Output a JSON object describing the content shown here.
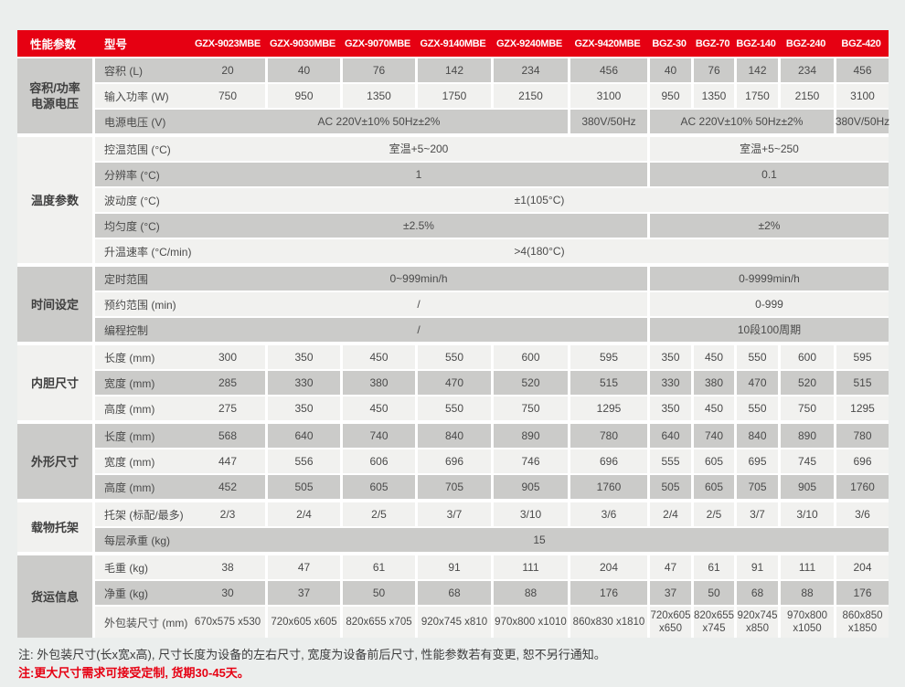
{
  "colors": {
    "accent": "#e60012",
    "row_gray": "#cbcbc9",
    "row_light": "#f1f1ef",
    "header_text": "#ffffff",
    "page_bg": "#ebeeed"
  },
  "header": {
    "param_label": "性能参数",
    "model_label": "型号",
    "models": [
      "GZX-9023MBE",
      "GZX-9030MBE",
      "GZX-9070MBE",
      "GZX-9140MBE",
      "GZX-9240MBE",
      "GZX-9420MBE",
      "BGZ-30",
      "BGZ-70",
      "BGZ-140",
      "BGZ-240",
      "BGZ-420"
    ]
  },
  "sections": [
    {
      "category": "容积/功率\n电源电压",
      "rows": [
        {
          "label": "容积 (L)",
          "cells": [
            [
              "20",
              1
            ],
            [
              "40",
              1
            ],
            [
              "76",
              1
            ],
            [
              "142",
              1
            ],
            [
              "234",
              1
            ],
            [
              "456",
              1
            ],
            [
              "40",
              1
            ],
            [
              "76",
              1
            ],
            [
              "142",
              1
            ],
            [
              "234",
              1
            ],
            [
              "456",
              1
            ]
          ]
        },
        {
          "label": "输入功率 (W)",
          "cells": [
            [
              "750",
              1
            ],
            [
              "950",
              1
            ],
            [
              "1350",
              1
            ],
            [
              "1750",
              1
            ],
            [
              "2150",
              1
            ],
            [
              "3100",
              1
            ],
            [
              "950",
              1
            ],
            [
              "1350",
              1
            ],
            [
              "1750",
              1
            ],
            [
              "2150",
              1
            ],
            [
              "3100",
              1
            ]
          ]
        },
        {
          "label": "电源电压 (V)",
          "cells": [
            [
              "AC 220V±10% 50Hz±2%",
              5
            ],
            [
              "380V/50Hz",
              1
            ],
            [
              "AC 220V±10% 50Hz±2%",
              4
            ],
            [
              "380V/50Hz",
              1
            ]
          ]
        }
      ]
    },
    {
      "category": "温度参数",
      "rows": [
        {
          "label": "控温范围 (°C)",
          "cells": [
            [
              "室温+5~200",
              6
            ],
            [
              "室温+5~250",
              5
            ]
          ]
        },
        {
          "label": "分辨率 (°C)",
          "cells": [
            [
              "1",
              6
            ],
            [
              "0.1",
              5
            ]
          ]
        },
        {
          "label": "波动度 (°C)",
          "cells": [
            [
              "±1(105°C)",
              11
            ]
          ]
        },
        {
          "label": "均匀度 (°C)",
          "cells": [
            [
              "±2.5%",
              6
            ],
            [
              "±2%",
              5
            ]
          ]
        },
        {
          "label": "升温速率 (°C/min)",
          "cells": [
            [
              ">4(180°C)",
              11
            ]
          ]
        }
      ]
    },
    {
      "category": "时间设定",
      "rows": [
        {
          "label": "定时范围",
          "cells": [
            [
              "0~999min/h",
              6
            ],
            [
              "0-9999min/h",
              5
            ]
          ]
        },
        {
          "label": "预约范围 (min)",
          "cells": [
            [
              "/",
              6
            ],
            [
              "0-999",
              5
            ]
          ]
        },
        {
          "label": "编程控制",
          "cells": [
            [
              "/",
              6
            ],
            [
              "10段100周期",
              5
            ]
          ]
        }
      ]
    },
    {
      "category": "内胆尺寸",
      "rows": [
        {
          "label": "长度 (mm)",
          "cells": [
            [
              "300",
              1
            ],
            [
              "350",
              1
            ],
            [
              "450",
              1
            ],
            [
              "550",
              1
            ],
            [
              "600",
              1
            ],
            [
              "595",
              1
            ],
            [
              "350",
              1
            ],
            [
              "450",
              1
            ],
            [
              "550",
              1
            ],
            [
              "600",
              1
            ],
            [
              "595",
              1
            ]
          ]
        },
        {
          "label": "宽度 (mm)",
          "cells": [
            [
              "285",
              1
            ],
            [
              "330",
              1
            ],
            [
              "380",
              1
            ],
            [
              "470",
              1
            ],
            [
              "520",
              1
            ],
            [
              "515",
              1
            ],
            [
              "330",
              1
            ],
            [
              "380",
              1
            ],
            [
              "470",
              1
            ],
            [
              "520",
              1
            ],
            [
              "515",
              1
            ]
          ]
        },
        {
          "label": "高度 (mm)",
          "cells": [
            [
              "275",
              1
            ],
            [
              "350",
              1
            ],
            [
              "450",
              1
            ],
            [
              "550",
              1
            ],
            [
              "750",
              1
            ],
            [
              "1295",
              1
            ],
            [
              "350",
              1
            ],
            [
              "450",
              1
            ],
            [
              "550",
              1
            ],
            [
              "750",
              1
            ],
            [
              "1295",
              1
            ]
          ]
        }
      ]
    },
    {
      "category": "外形尺寸",
      "rows": [
        {
          "label": "长度 (mm)",
          "cells": [
            [
              "568",
              1
            ],
            [
              "640",
              1
            ],
            [
              "740",
              1
            ],
            [
              "840",
              1
            ],
            [
              "890",
              1
            ],
            [
              "780",
              1
            ],
            [
              "640",
              1
            ],
            [
              "740",
              1
            ],
            [
              "840",
              1
            ],
            [
              "890",
              1
            ],
            [
              "780",
              1
            ]
          ]
        },
        {
          "label": "宽度 (mm)",
          "cells": [
            [
              "447",
              1
            ],
            [
              "556",
              1
            ],
            [
              "606",
              1
            ],
            [
              "696",
              1
            ],
            [
              "746",
              1
            ],
            [
              "696",
              1
            ],
            [
              "555",
              1
            ],
            [
              "605",
              1
            ],
            [
              "695",
              1
            ],
            [
              "745",
              1
            ],
            [
              "696",
              1
            ]
          ]
        },
        {
          "label": "高度 (mm)",
          "cells": [
            [
              "452",
              1
            ],
            [
              "505",
              1
            ],
            [
              "605",
              1
            ],
            [
              "705",
              1
            ],
            [
              "905",
              1
            ],
            [
              "1760",
              1
            ],
            [
              "505",
              1
            ],
            [
              "605",
              1
            ],
            [
              "705",
              1
            ],
            [
              "905",
              1
            ],
            [
              "1760",
              1
            ]
          ]
        }
      ]
    },
    {
      "category": "载物托架",
      "rows": [
        {
          "label": "托架 (标配/最多)",
          "cells": [
            [
              "2/3",
              1
            ],
            [
              "2/4",
              1
            ],
            [
              "2/5",
              1
            ],
            [
              "3/7",
              1
            ],
            [
              "3/10",
              1
            ],
            [
              "3/6",
              1
            ],
            [
              "2/4",
              1
            ],
            [
              "2/5",
              1
            ],
            [
              "3/7",
              1
            ],
            [
              "3/10",
              1
            ],
            [
              "3/6",
              1
            ]
          ]
        },
        {
          "label": "每层承重 (kg)",
          "cells": [
            [
              "15",
              11
            ]
          ]
        }
      ]
    },
    {
      "category": "货运信息",
      "rows": [
        {
          "label": "毛重 (kg)",
          "cells": [
            [
              "38",
              1
            ],
            [
              "47",
              1
            ],
            [
              "61",
              1
            ],
            [
              "91",
              1
            ],
            [
              "111",
              1
            ],
            [
              "204",
              1
            ],
            [
              "47",
              1
            ],
            [
              "61",
              1
            ],
            [
              "91",
              1
            ],
            [
              "111",
              1
            ],
            [
              "204",
              1
            ]
          ]
        },
        {
          "label": "净重 (kg)",
          "cells": [
            [
              "30",
              1
            ],
            [
              "37",
              1
            ],
            [
              "50",
              1
            ],
            [
              "68",
              1
            ],
            [
              "88",
              1
            ],
            [
              "176",
              1
            ],
            [
              "37",
              1
            ],
            [
              "50",
              1
            ],
            [
              "68",
              1
            ],
            [
              "88",
              1
            ],
            [
              "176",
              1
            ]
          ]
        },
        {
          "label": "外包装尺寸 (mm)",
          "tall": true,
          "cells": [
            [
              "670x575 x530",
              1
            ],
            [
              "720x605 x605",
              1
            ],
            [
              "820x655 x705",
              1
            ],
            [
              "920x745 x810",
              1
            ],
            [
              "970x800 x1010",
              1
            ],
            [
              "860x830 x1810",
              1
            ],
            [
              "720x605 x650",
              1
            ],
            [
              "820x655 x745",
              1
            ],
            [
              "920x745 x850",
              1
            ],
            [
              "970x800 x1050",
              1
            ],
            [
              "860x850 x1850",
              1
            ]
          ]
        }
      ]
    }
  ],
  "notes": [
    "注: 外包装尺寸(长x宽x高), 尺寸长度为设备的左右尺寸, 宽度为设备前后尺寸, 性能参数若有变更, 恕不另行通知。",
    "注:更大尺寸需求可接受定制, 货期30-45天。"
  ]
}
